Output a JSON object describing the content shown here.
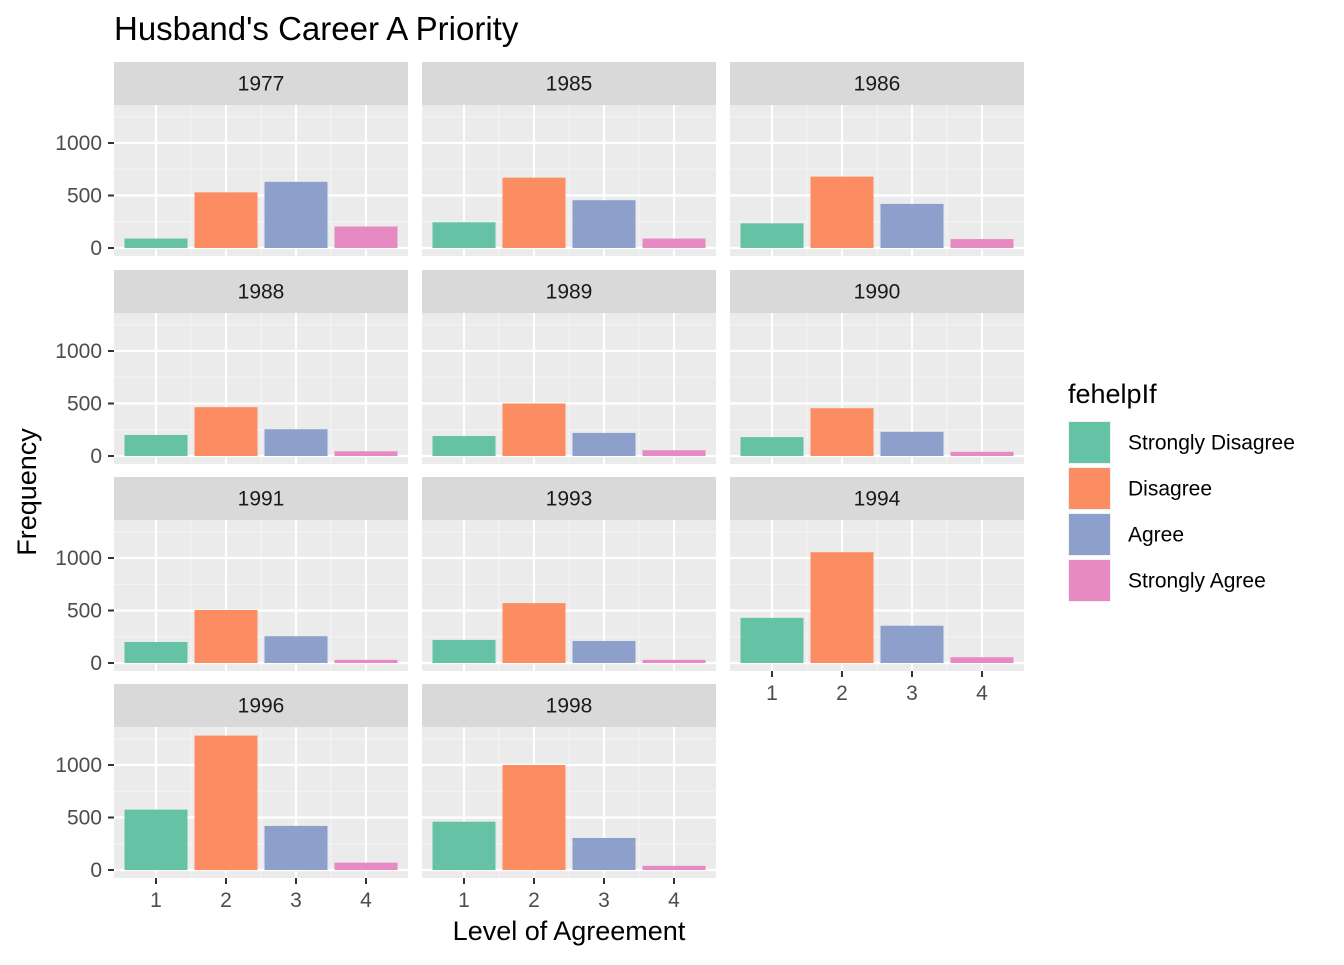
{
  "chart_data": {
    "type": "bar",
    "title": "Husband's Career A Priority",
    "xlabel": "Level of Agreement",
    "ylabel": "Frequency",
    "categories": [
      "1",
      "2",
      "3",
      "4"
    ],
    "yticks": [
      0,
      500,
      1000
    ],
    "ylim": [
      0,
      1300
    ],
    "grid": true,
    "legend": {
      "title": "fehelpIf",
      "position": "right",
      "entries": [
        {
          "label": "Strongly Disagree",
          "color": "#66C2A5"
        },
        {
          "label": "Disagree",
          "color": "#FC8D62"
        },
        {
          "label": "Agree",
          "color": "#8DA0CB"
        },
        {
          "label": "Strongly Agree",
          "color": "#E78AC3"
        }
      ]
    },
    "panels": [
      {
        "label": "1977",
        "values": [
          90,
          530,
          630,
          205
        ]
      },
      {
        "label": "1985",
        "values": [
          245,
          670,
          455,
          90
        ]
      },
      {
        "label": "1986",
        "values": [
          235,
          680,
          420,
          85
        ]
      },
      {
        "label": "1988",
        "values": [
          200,
          465,
          255,
          45
        ]
      },
      {
        "label": "1989",
        "values": [
          190,
          500,
          220,
          55
        ]
      },
      {
        "label": "1990",
        "values": [
          180,
          455,
          230,
          40
        ]
      },
      {
        "label": "1991",
        "values": [
          200,
          505,
          255,
          30
        ]
      },
      {
        "label": "1993",
        "values": [
          220,
          570,
          210,
          30
        ]
      },
      {
        "label": "1994",
        "values": [
          430,
          1055,
          355,
          55
        ]
      },
      {
        "label": "1996",
        "values": [
          575,
          1280,
          420,
          70
        ]
      },
      {
        "label": "1998",
        "values": [
          460,
          1000,
          305,
          40
        ]
      }
    ]
  }
}
